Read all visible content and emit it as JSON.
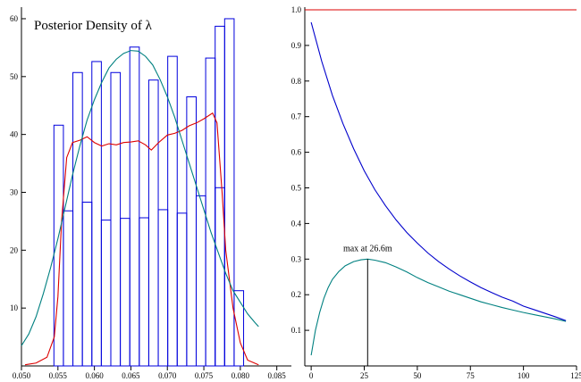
{
  "chart_data": [
    {
      "type": "bar",
      "title": "Posterior Density of λ",
      "xlim": [
        0.05,
        0.087
      ],
      "ylim": [
        0,
        62
      ],
      "x_ticks": [
        "0.050",
        "0.055",
        "0.060",
        "0.065",
        "0.070",
        "0.075",
        "0.080",
        "0.085"
      ],
      "y_ticks": [
        "10",
        "20",
        "30",
        "40",
        "50",
        "60"
      ],
      "bar_width": 0.0013,
      "colors": {
        "bars": "#0000dd",
        "red_curve": "#dd0000",
        "teal_curve": "#008080"
      },
      "series": [
        {
          "values": [
            {
              "x": 0.0551,
              "y": 41.6
            },
            {
              "x": 0.0577,
              "y": 50.7
            },
            {
              "x": 0.0603,
              "y": 52.6
            },
            {
              "x": 0.0629,
              "y": 50.7
            },
            {
              "x": 0.0655,
              "y": 55.1
            },
            {
              "x": 0.0681,
              "y": 49.4
            },
            {
              "x": 0.0707,
              "y": 53.5
            },
            {
              "x": 0.0733,
              "y": 46.5
            },
            {
              "x": 0.0759,
              "y": 53.2
            },
            {
              "x": 0.0785,
              "y": 60.0
            }
          ]
        },
        {
          "values": [
            {
              "x": 0.0564,
              "y": 26.8
            },
            {
              "x": 0.059,
              "y": 28.3
            },
            {
              "x": 0.0616,
              "y": 25.2
            },
            {
              "x": 0.0642,
              "y": 25.5
            },
            {
              "x": 0.0668,
              "y": 25.6
            },
            {
              "x": 0.0694,
              "y": 27.0
            },
            {
              "x": 0.072,
              "y": 26.4
            },
            {
              "x": 0.0746,
              "y": 29.4
            },
            {
              "x": 0.0772,
              "y": 58.7
            },
            {
              "x": 0.0772,
              "y": 30.8
            },
            {
              "x": 0.0798,
              "y": 13.0
            }
          ]
        },
        {
          "points": [
            [
              0.0505,
              0.2
            ],
            [
              0.052,
              0.5
            ],
            [
              0.0535,
              1.5
            ],
            [
              0.0545,
              5
            ],
            [
              0.055,
              12
            ],
            [
              0.0555,
              25
            ],
            [
              0.0562,
              36
            ],
            [
              0.057,
              38.6
            ],
            [
              0.058,
              39
            ],
            [
              0.059,
              39.6
            ],
            [
              0.06,
              38.6
            ],
            [
              0.061,
              38
            ],
            [
              0.062,
              38.4
            ],
            [
              0.063,
              38.2
            ],
            [
              0.064,
              38.6
            ],
            [
              0.065,
              38.7
            ],
            [
              0.066,
              38.9
            ],
            [
              0.067,
              38.2
            ],
            [
              0.0678,
              37.3
            ],
            [
              0.0688,
              38.6
            ],
            [
              0.07,
              39.9
            ],
            [
              0.071,
              40.2
            ],
            [
              0.072,
              40.7
            ],
            [
              0.073,
              41.5
            ],
            [
              0.074,
              42
            ],
            [
              0.075,
              42.7
            ],
            [
              0.0762,
              43.7
            ],
            [
              0.0768,
              42
            ],
            [
              0.0775,
              30
            ],
            [
              0.078,
              20
            ],
            [
              0.079,
              10
            ],
            [
              0.08,
              4
            ],
            [
              0.081,
              1
            ],
            [
              0.0825,
              0.2
            ]
          ]
        },
        {
          "points": [
            [
              0.05,
              3.5
            ],
            [
              0.051,
              5.5
            ],
            [
              0.052,
              8.5
            ],
            [
              0.053,
              12.5
            ],
            [
              0.054,
              17
            ],
            [
              0.055,
              22
            ],
            [
              0.056,
              27.5
            ],
            [
              0.057,
              33
            ],
            [
              0.058,
              38
            ],
            [
              0.059,
              42.5
            ],
            [
              0.06,
              46
            ],
            [
              0.061,
              49
            ],
            [
              0.062,
              51.5
            ],
            [
              0.063,
              53
            ],
            [
              0.064,
              54
            ],
            [
              0.065,
              54.5
            ],
            [
              0.066,
              54.4
            ],
            [
              0.067,
              53.5
            ],
            [
              0.068,
              52
            ],
            [
              0.069,
              49.5
            ],
            [
              0.07,
              46.5
            ],
            [
              0.071,
              43
            ],
            [
              0.072,
              39
            ],
            [
              0.073,
              35
            ],
            [
              0.074,
              31
            ],
            [
              0.075,
              27
            ],
            [
              0.076,
              23
            ],
            [
              0.077,
              19.5
            ],
            [
              0.078,
              16
            ],
            [
              0.079,
              13
            ],
            [
              0.08,
              11
            ],
            [
              0.081,
              9
            ],
            [
              0.082,
              7.5
            ],
            [
              0.0825,
              6.8
            ]
          ]
        }
      ]
    },
    {
      "type": "line",
      "xlim": [
        -3,
        125
      ],
      "ylim": [
        0,
        1.0
      ],
      "x_ticks": [
        "0",
        "25",
        "50",
        "75",
        "100",
        "125"
      ],
      "y_ticks": [
        "0.1",
        "0.2",
        "0.3",
        "0.4",
        "0.5",
        "0.6",
        "0.7",
        "0.8",
        "0.9",
        "1.0"
      ],
      "colors": {
        "flat": "#dd0000",
        "decay": "#0000cc",
        "product": "#008080"
      },
      "series": [
        {
          "points": [
            [
              -3,
              1.0
            ],
            [
              125,
              1.0
            ]
          ]
        },
        {
          "points": [
            [
              0,
              0.965
            ],
            [
              5,
              0.855
            ],
            [
              10,
              0.76
            ],
            [
              15,
              0.68
            ],
            [
              20,
              0.61
            ],
            [
              25,
              0.548
            ],
            [
              30,
              0.495
            ],
            [
              35,
              0.45
            ],
            [
              40,
              0.41
            ],
            [
              45,
              0.375
            ],
            [
              50,
              0.345
            ],
            [
              55,
              0.317
            ],
            [
              60,
              0.293
            ],
            [
              65,
              0.272
            ],
            [
              70,
              0.253
            ],
            [
              75,
              0.236
            ],
            [
              80,
              0.22
            ],
            [
              85,
              0.206
            ],
            [
              90,
              0.193
            ],
            [
              95,
              0.182
            ],
            [
              100,
              0.168
            ],
            [
              105,
              0.158
            ],
            [
              110,
              0.148
            ],
            [
              115,
              0.138
            ],
            [
              120,
              0.127
            ]
          ]
        },
        {
          "points": [
            [
              0,
              0.03
            ],
            [
              2,
              0.1
            ],
            [
              4,
              0.15
            ],
            [
              6,
              0.19
            ],
            [
              8,
              0.22
            ],
            [
              10,
              0.243
            ],
            [
              13,
              0.265
            ],
            [
              16,
              0.281
            ],
            [
              20,
              0.293
            ],
            [
              23.5,
              0.298
            ],
            [
              26.6,
              0.3
            ],
            [
              30,
              0.297
            ],
            [
              35,
              0.29
            ],
            [
              40,
              0.278
            ],
            [
              45,
              0.264
            ],
            [
              50,
              0.248
            ],
            [
              55,
              0.234
            ],
            [
              60,
              0.222
            ],
            [
              65,
              0.21
            ],
            [
              70,
              0.2
            ],
            [
              75,
              0.19
            ],
            [
              80,
              0.18
            ],
            [
              85,
              0.172
            ],
            [
              90,
              0.164
            ],
            [
              95,
              0.157
            ],
            [
              100,
              0.15
            ],
            [
              105,
              0.144
            ],
            [
              110,
              0.138
            ],
            [
              115,
              0.132
            ],
            [
              120,
              0.125
            ]
          ]
        }
      ],
      "annotations": [
        {
          "text": "max at 26.6m",
          "x": 26.6,
          "y": 0.3
        }
      ]
    }
  ]
}
